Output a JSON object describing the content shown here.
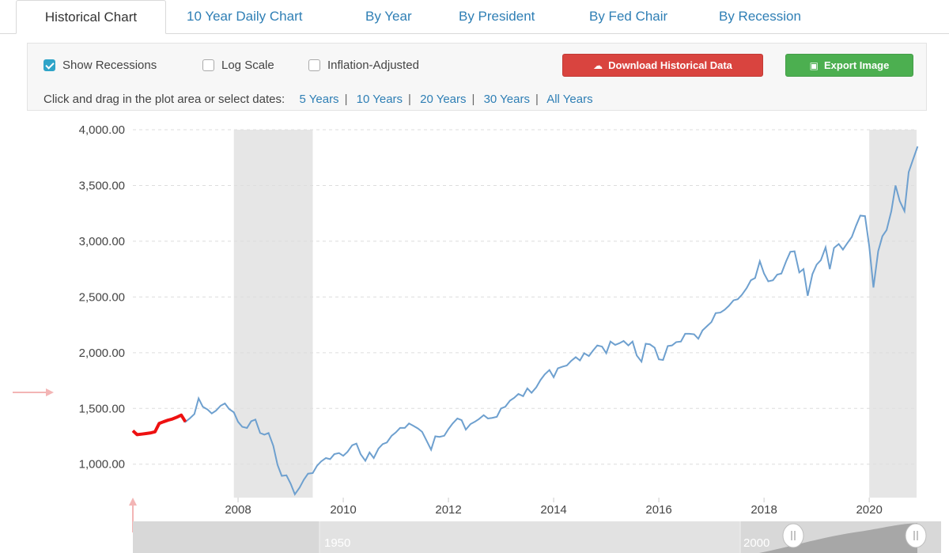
{
  "tabs": [
    {
      "label": "Historical Chart",
      "active": true
    },
    {
      "label": "10 Year Daily Chart"
    },
    {
      "label": "By Year"
    },
    {
      "label": "By President"
    },
    {
      "label": "By Fed Chair"
    },
    {
      "label": "By Recession"
    }
  ],
  "options": {
    "show_recessions": "Show Recessions",
    "log_scale": "Log Scale",
    "inflation_adjusted": "Inflation-Adjusted"
  },
  "buttons": {
    "download": "Download Historical Data",
    "export": "Export Image"
  },
  "date_select": {
    "prompt": "Click and drag in the plot area or select dates:",
    "ranges": [
      "5 Years",
      "10 Years",
      "20 Years",
      "30 Years",
      "All Years"
    ]
  },
  "colors": {
    "line": "#6ea0cf",
    "highlight": "#ee1111",
    "recession": "#e6e6e6",
    "accent": "#2f7fb5",
    "download_button": "#d9443f",
    "export_button": "#4caf50"
  },
  "navigator": {
    "labels": [
      "1950",
      "2000"
    ]
  },
  "chart_data": {
    "type": "line",
    "xlim": [
      2006.0,
      2020.9
    ],
    "ylim": [
      700,
      4000
    ],
    "y_ticks": [
      "1,000.00",
      "1,500.00",
      "2,000.00",
      "2,500.00",
      "3,000.00",
      "3,500.00",
      "4,000.00"
    ],
    "y_tick_values": [
      1000,
      1500,
      2000,
      2500,
      3000,
      3500,
      4000
    ],
    "x_ticks": [
      "2008",
      "2010",
      "2012",
      "2014",
      "2016",
      "2018",
      "2020"
    ],
    "x_tick_values": [
      2008,
      2010,
      2012,
      2014,
      2016,
      2018,
      2020
    ],
    "grid": true,
    "recessions": [
      [
        2007.92,
        2009.42
      ],
      [
        2020.0,
        2020.9
      ]
    ],
    "highlight_range": [
      2006.0,
      2007.0
    ],
    "series": [
      {
        "x": [
          2006.0,
          2006.08,
          2006.17,
          2006.25,
          2006.33,
          2006.42,
          2006.5,
          2006.58,
          2006.67,
          2006.75,
          2006.83,
          2006.92,
          2007.0,
          2007.08,
          2007.17,
          2007.25,
          2007.33,
          2007.42,
          2007.5,
          2007.58,
          2007.67,
          2007.75,
          2007.83,
          2007.92,
          2008.0,
          2008.08,
          2008.17,
          2008.25,
          2008.33,
          2008.42,
          2008.5,
          2008.58,
          2008.67,
          2008.75,
          2008.83,
          2008.92,
          2009.0,
          2009.08,
          2009.17,
          2009.25,
          2009.33,
          2009.42,
          2009.5,
          2009.58,
          2009.67,
          2009.75,
          2009.83,
          2009.92,
          2010.0,
          2010.08,
          2010.17,
          2010.25,
          2010.33,
          2010.42,
          2010.5,
          2010.58,
          2010.67,
          2010.75,
          2010.83,
          2010.92,
          2011.0,
          2011.08,
          2011.17,
          2011.25,
          2011.33,
          2011.42,
          2011.5,
          2011.58,
          2011.67,
          2011.75,
          2011.83,
          2011.92,
          2012.0,
          2012.08,
          2012.17,
          2012.25,
          2012.33,
          2012.42,
          2012.5,
          2012.58,
          2012.67,
          2012.75,
          2012.83,
          2012.92,
          2013.0,
          2013.08,
          2013.17,
          2013.25,
          2013.33,
          2013.42,
          2013.5,
          2013.58,
          2013.67,
          2013.75,
          2013.83,
          2013.92,
          2014.0,
          2014.08,
          2014.17,
          2014.25,
          2014.33,
          2014.42,
          2014.5,
          2014.58,
          2014.67,
          2014.75,
          2014.83,
          2014.92,
          2015.0,
          2015.08,
          2015.17,
          2015.25,
          2015.33,
          2015.42,
          2015.5,
          2015.58,
          2015.67,
          2015.75,
          2015.83,
          2015.92,
          2016.0,
          2016.08,
          2016.17,
          2016.25,
          2016.33,
          2016.42,
          2016.5,
          2016.58,
          2016.67,
          2016.75,
          2016.83,
          2016.92,
          2017.0,
          2017.08,
          2017.17,
          2017.25,
          2017.33,
          2017.42,
          2017.5,
          2017.58,
          2017.67,
          2017.75,
          2017.83,
          2017.92,
          2018.0,
          2018.08,
          2018.17,
          2018.25,
          2018.33,
          2018.42,
          2018.5,
          2018.58,
          2018.67,
          2018.75,
          2018.83,
          2018.92,
          2019.0,
          2019.08,
          2019.17,
          2019.25,
          2019.33,
          2019.42,
          2019.5,
          2019.58,
          2019.67,
          2019.75,
          2019.83,
          2019.92,
          2020.0,
          2020.08,
          2020.17,
          2020.25,
          2020.33,
          2020.42,
          2020.5,
          2020.58,
          2020.67,
          2020.75,
          2020.83,
          2020.92
        ],
        "values": [
          1300,
          1265,
          1270,
          1275,
          1280,
          1290,
          1365,
          1380,
          1395,
          1405,
          1420,
          1440,
          1380,
          1410,
          1450,
          1590,
          1515,
          1490,
          1455,
          1480,
          1525,
          1545,
          1495,
          1465,
          1380,
          1335,
          1325,
          1385,
          1400,
          1280,
          1265,
          1280,
          1165,
          995,
          895,
          900,
          825,
          730,
          790,
          860,
          915,
          920,
          985,
          1025,
          1055,
          1045,
          1090,
          1100,
          1075,
          1110,
          1170,
          1185,
          1090,
          1030,
          1105,
          1055,
          1140,
          1180,
          1195,
          1255,
          1285,
          1325,
          1325,
          1365,
          1345,
          1320,
          1290,
          1215,
          1130,
          1250,
          1245,
          1255,
          1315,
          1365,
          1410,
          1395,
          1310,
          1360,
          1380,
          1405,
          1440,
          1410,
          1415,
          1425,
          1500,
          1515,
          1570,
          1595,
          1630,
          1610,
          1680,
          1640,
          1690,
          1755,
          1805,
          1845,
          1780,
          1860,
          1875,
          1885,
          1925,
          1960,
          1930,
          1995,
          1970,
          2020,
          2065,
          2055,
          1995,
          2100,
          2070,
          2085,
          2105,
          2065,
          2100,
          1975,
          1920,
          2080,
          2075,
          2045,
          1940,
          1935,
          2060,
          2065,
          2095,
          2100,
          2170,
          2170,
          2165,
          2125,
          2200,
          2240,
          2275,
          2355,
          2360,
          2385,
          2420,
          2470,
          2480,
          2520,
          2580,
          2650,
          2670,
          2820,
          2710,
          2640,
          2650,
          2700,
          2710,
          2820,
          2905,
          2910,
          2720,
          2750,
          2510,
          2705,
          2790,
          2830,
          2945,
          2750,
          2940,
          2975,
          2925,
          2980,
          3040,
          3140,
          3230,
          3225,
          2955,
          2585,
          2910,
          3045,
          3100,
          3270,
          3500,
          3360,
          3270,
          3620,
          3730,
          3850
        ]
      }
    ]
  }
}
